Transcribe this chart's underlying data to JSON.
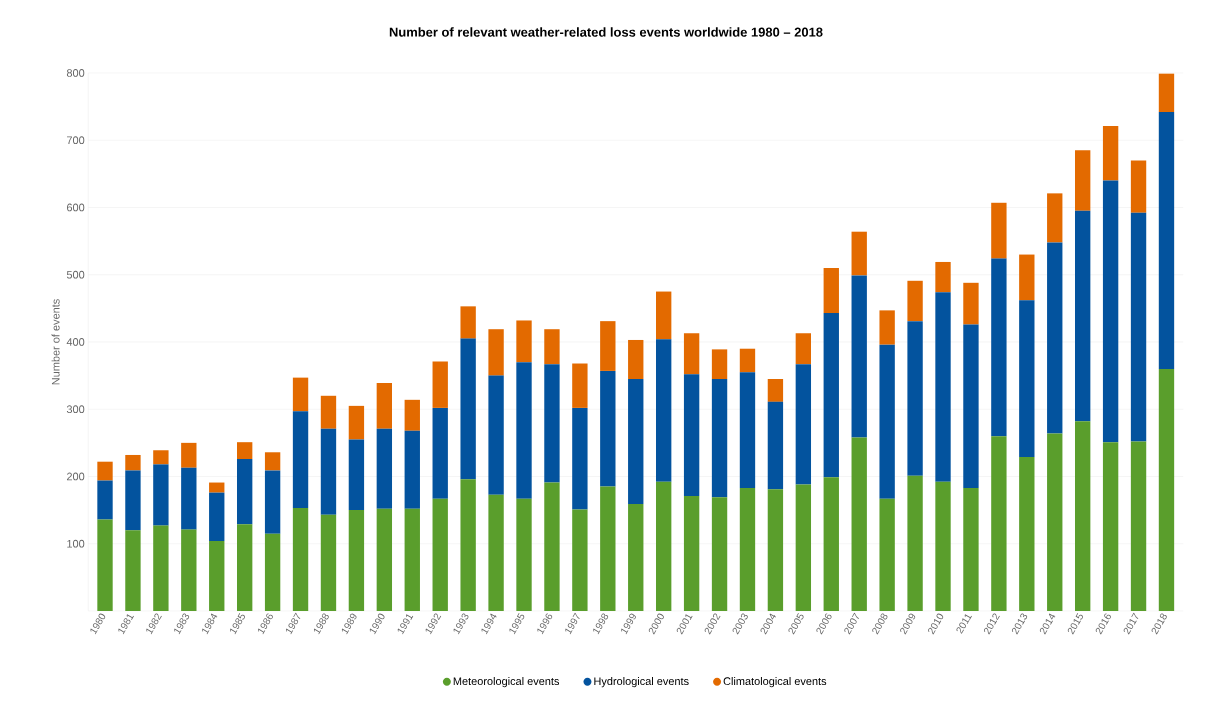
{
  "chart_data": {
    "type": "bar",
    "stacked": true,
    "title": "Number of relevant weather-related loss events worldwide 1980 – 2018",
    "ylabel": "Number of events",
    "categories": [
      "1980",
      "1981",
      "1982",
      "1983",
      "1984",
      "1985",
      "1986",
      "1987",
      "1988",
      "1989",
      "1990",
      "1991",
      "1992",
      "1993",
      "1994",
      "1995",
      "1996",
      "1997",
      "1998",
      "1999",
      "2000",
      "2001",
      "2002",
      "2003",
      "2004",
      "2005",
      "2006",
      "2007",
      "2008",
      "2009",
      "2010",
      "2011",
      "2012",
      "2013",
      "2014",
      "2015",
      "2016",
      "2017",
      "2018"
    ],
    "series": [
      {
        "name": "Meteorological events",
        "color": "#5a9e2c",
        "values": [
          136,
          120,
          127,
          121,
          104,
          129,
          115,
          153,
          143,
          150,
          152,
          152,
          167,
          196,
          173,
          167,
          191,
          151,
          185,
          159,
          192,
          171,
          169,
          183,
          181,
          188,
          199,
          258,
          167,
          201,
          192,
          183,
          260,
          229,
          264,
          282,
          251,
          252,
          360
        ]
      },
      {
        "name": "Hydrological events",
        "color": "#03539e",
        "values": [
          58,
          89,
          91,
          92,
          72,
          97,
          94,
          144,
          128,
          105,
          119,
          116,
          135,
          209,
          177,
          203,
          176,
          151,
          172,
          186,
          212,
          181,
          176,
          172,
          130,
          179,
          244,
          241,
          229,
          230,
          282,
          243,
          264,
          233,
          284,
          313,
          389,
          340,
          382
        ]
      },
      {
        "name": "Climatological events",
        "color": "#e36a00",
        "values": [
          28,
          23,
          21,
          37,
          15,
          25,
          27,
          50,
          49,
          50,
          68,
          46,
          69,
          48,
          69,
          62,
          52,
          66,
          74,
          58,
          71,
          61,
          44,
          35,
          34,
          46,
          67,
          65,
          51,
          60,
          45,
          62,
          83,
          68,
          73,
          90,
          81,
          78,
          57
        ]
      }
    ],
    "ylim": [
      0,
      800
    ],
    "yticks": [
      100,
      200,
      300,
      400,
      500,
      600,
      700,
      800
    ],
    "grid": "y",
    "legend": "bottom"
  }
}
